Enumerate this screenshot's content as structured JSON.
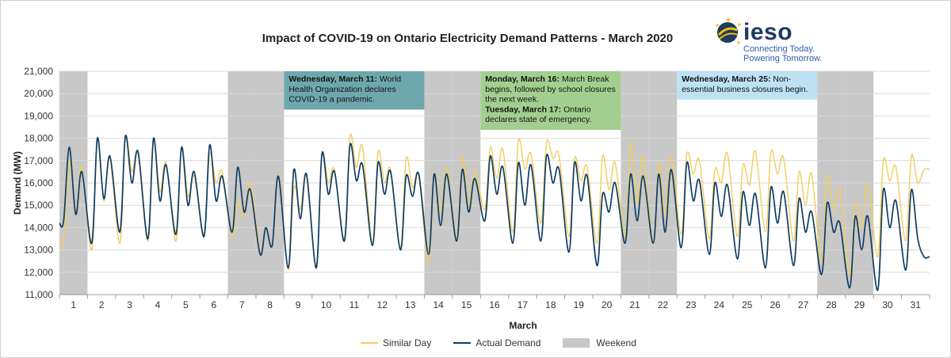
{
  "title": "Impact of COVID-19 on Ontario Electricity Demand Patterns - March 2020",
  "logo": {
    "word": "ieso",
    "tagline_1": "Connecting Today.",
    "tagline_2": "Powering Tomorrow."
  },
  "colors": {
    "similar_day": "#F2CD5C",
    "actual_demand": "#0F3D63",
    "weekend": "#C8C8C8",
    "box_teal": "#6EA8AE",
    "box_green": "#A2CF8F",
    "box_blue": "#BDE2F3",
    "grid": "#D9D9D9"
  },
  "annotations": [
    {
      "start_day": 9,
      "end_day": 13,
      "bold": "Wednesday, March 11:",
      "lines": [
        " World",
        "Health Organization declares",
        "COVID-19  a pandemic."
      ],
      "color_key": "box_teal"
    },
    {
      "start_day": 16,
      "end_day": 20,
      "bold": "Monday, March 16:",
      "lines": [
        " March Break",
        "begins, followed by school closures",
        "the next week."
      ],
      "bold2": "Tuesday, March 17:",
      "lines2": [
        " Ontario",
        "declares state of emergency."
      ],
      "color_key": "box_green"
    },
    {
      "start_day": 23,
      "end_day": 27,
      "bold": "Wednesday, March 25:",
      "lines": [
        " Non-",
        "essential business closures begin."
      ],
      "color_key": "box_blue"
    }
  ],
  "legend": {
    "similar_day": "Similar Day",
    "actual_demand": "Actual Demand",
    "weekend": "Weekend"
  },
  "chart_data": {
    "type": "line",
    "title": "Impact of COVID-19 on Ontario Electricity Demand Patterns - March 2020",
    "xlabel": "March",
    "ylabel": "Demand (MW)",
    "ylim": [
      11000,
      21000
    ],
    "yticks": [
      11000,
      12000,
      13000,
      14000,
      15000,
      16000,
      17000,
      18000,
      19000,
      20000,
      21000
    ],
    "ytick_labels": [
      "11,000",
      "12,000",
      "13,000",
      "14,000",
      "15,000",
      "16,000",
      "17,000",
      "18,000",
      "19,000",
      "20,000",
      "21,000"
    ],
    "categories": [
      "1",
      "2",
      "3",
      "4",
      "5",
      "6",
      "7",
      "8",
      "9",
      "10",
      "11",
      "12",
      "13",
      "14",
      "15",
      "16",
      "17",
      "18",
      "19",
      "20",
      "21",
      "22",
      "23",
      "24",
      "25",
      "26",
      "27",
      "28",
      "29",
      "30",
      "31"
    ],
    "weekend_days": [
      1,
      7,
      8,
      14,
      15,
      21,
      22,
      28,
      29
    ],
    "grid": true,
    "series": [
      {
        "name": "Similar Day",
        "daily": [
          [
            13400,
            17000,
            14600,
            16700
          ],
          [
            13000,
            17900,
            15200,
            17100
          ],
          [
            13300,
            18000,
            16500,
            17300
          ],
          [
            13400,
            17900,
            15600,
            16900
          ],
          [
            13400,
            17600,
            15400,
            16300
          ],
          [
            13700,
            17300,
            16000,
            16500
          ],
          [
            13600,
            15200,
            14500,
            16000
          ],
          [
            13000,
            14000,
            13200,
            16400
          ],
          [
            12100,
            15800,
            14800,
            16300
          ],
          [
            12300,
            17300,
            16000,
            16600
          ],
          [
            13500,
            18100,
            16700,
            17600
          ],
          [
            13300,
            17400,
            16000,
            16600
          ],
          [
            13100,
            17100,
            15800,
            16300
          ],
          [
            12400,
            16400,
            14700,
            16700
          ],
          [
            13600,
            17200,
            15000,
            16600
          ],
          [
            14800,
            17600,
            16200,
            17500
          ],
          [
            13800,
            17900,
            16600,
            17300
          ],
          [
            14200,
            17800,
            17100,
            17200
          ],
          [
            13600,
            17100,
            16100,
            16700
          ],
          [
            13300,
            17200,
            15700,
            16900
          ],
          [
            13600,
            17800,
            15100,
            17200
          ],
          [
            13400,
            16900,
            14600,
            17200
          ],
          [
            13700,
            17300,
            16400,
            17000
          ],
          [
            13500,
            16600,
            16000,
            17300
          ],
          [
            13600,
            16800,
            15900,
            17400
          ],
          [
            13800,
            17400,
            16400,
            17100
          ],
          [
            13400,
            16500,
            15000,
            16400
          ],
          [
            12400,
            16300,
            14800,
            15700
          ],
          [
            11900,
            15100,
            14000,
            16000
          ],
          [
            12700,
            17000,
            16100,
            16700
          ],
          [
            13400,
            17200,
            16000,
            16600
          ]
        ]
      },
      {
        "name": "Actual Demand",
        "daily": [
          [
            14300,
            17600,
            14600,
            16500
          ],
          [
            13300,
            18000,
            15300,
            17200
          ],
          [
            13800,
            18100,
            16000,
            17400
          ],
          [
            13500,
            18000,
            15200,
            16800
          ],
          [
            13700,
            17600,
            15000,
            16500
          ],
          [
            13600,
            17700,
            15200,
            16300
          ],
          [
            13800,
            16700,
            14700,
            15700
          ],
          [
            12800,
            14000,
            13200,
            16300
          ],
          [
            12200,
            16600,
            14400,
            16400
          ],
          [
            12200,
            17300,
            15500,
            16500
          ],
          [
            13400,
            17700,
            16100,
            16800
          ],
          [
            13200,
            16900,
            15500,
            16500
          ],
          [
            13000,
            16300,
            15400,
            16400
          ],
          [
            12800,
            16400,
            14100,
            16400
          ],
          [
            13400,
            16600,
            14700,
            16200
          ],
          [
            14300,
            17200,
            15500,
            16700
          ],
          [
            13300,
            16900,
            15000,
            16800
          ],
          [
            13400,
            17200,
            16000,
            16600
          ],
          [
            12900,
            16900,
            15200,
            16300
          ],
          [
            12300,
            15500,
            14700,
            16000
          ],
          [
            13300,
            16400,
            14300,
            16300
          ],
          [
            13300,
            16400,
            13800,
            16600
          ],
          [
            13100,
            16900,
            15200,
            16100
          ],
          [
            12800,
            16000,
            14500,
            15900
          ],
          [
            12600,
            15600,
            14100,
            15500
          ],
          [
            12200,
            15800,
            14200,
            15600
          ],
          [
            12300,
            15300,
            13800,
            14700
          ],
          [
            11900,
            15100,
            13800,
            14200
          ],
          [
            11300,
            14500,
            13000,
            14500
          ],
          [
            11200,
            15700,
            14000,
            15200
          ],
          [
            12100,
            15700,
            13500,
            12700
          ]
        ]
      }
    ]
  }
}
